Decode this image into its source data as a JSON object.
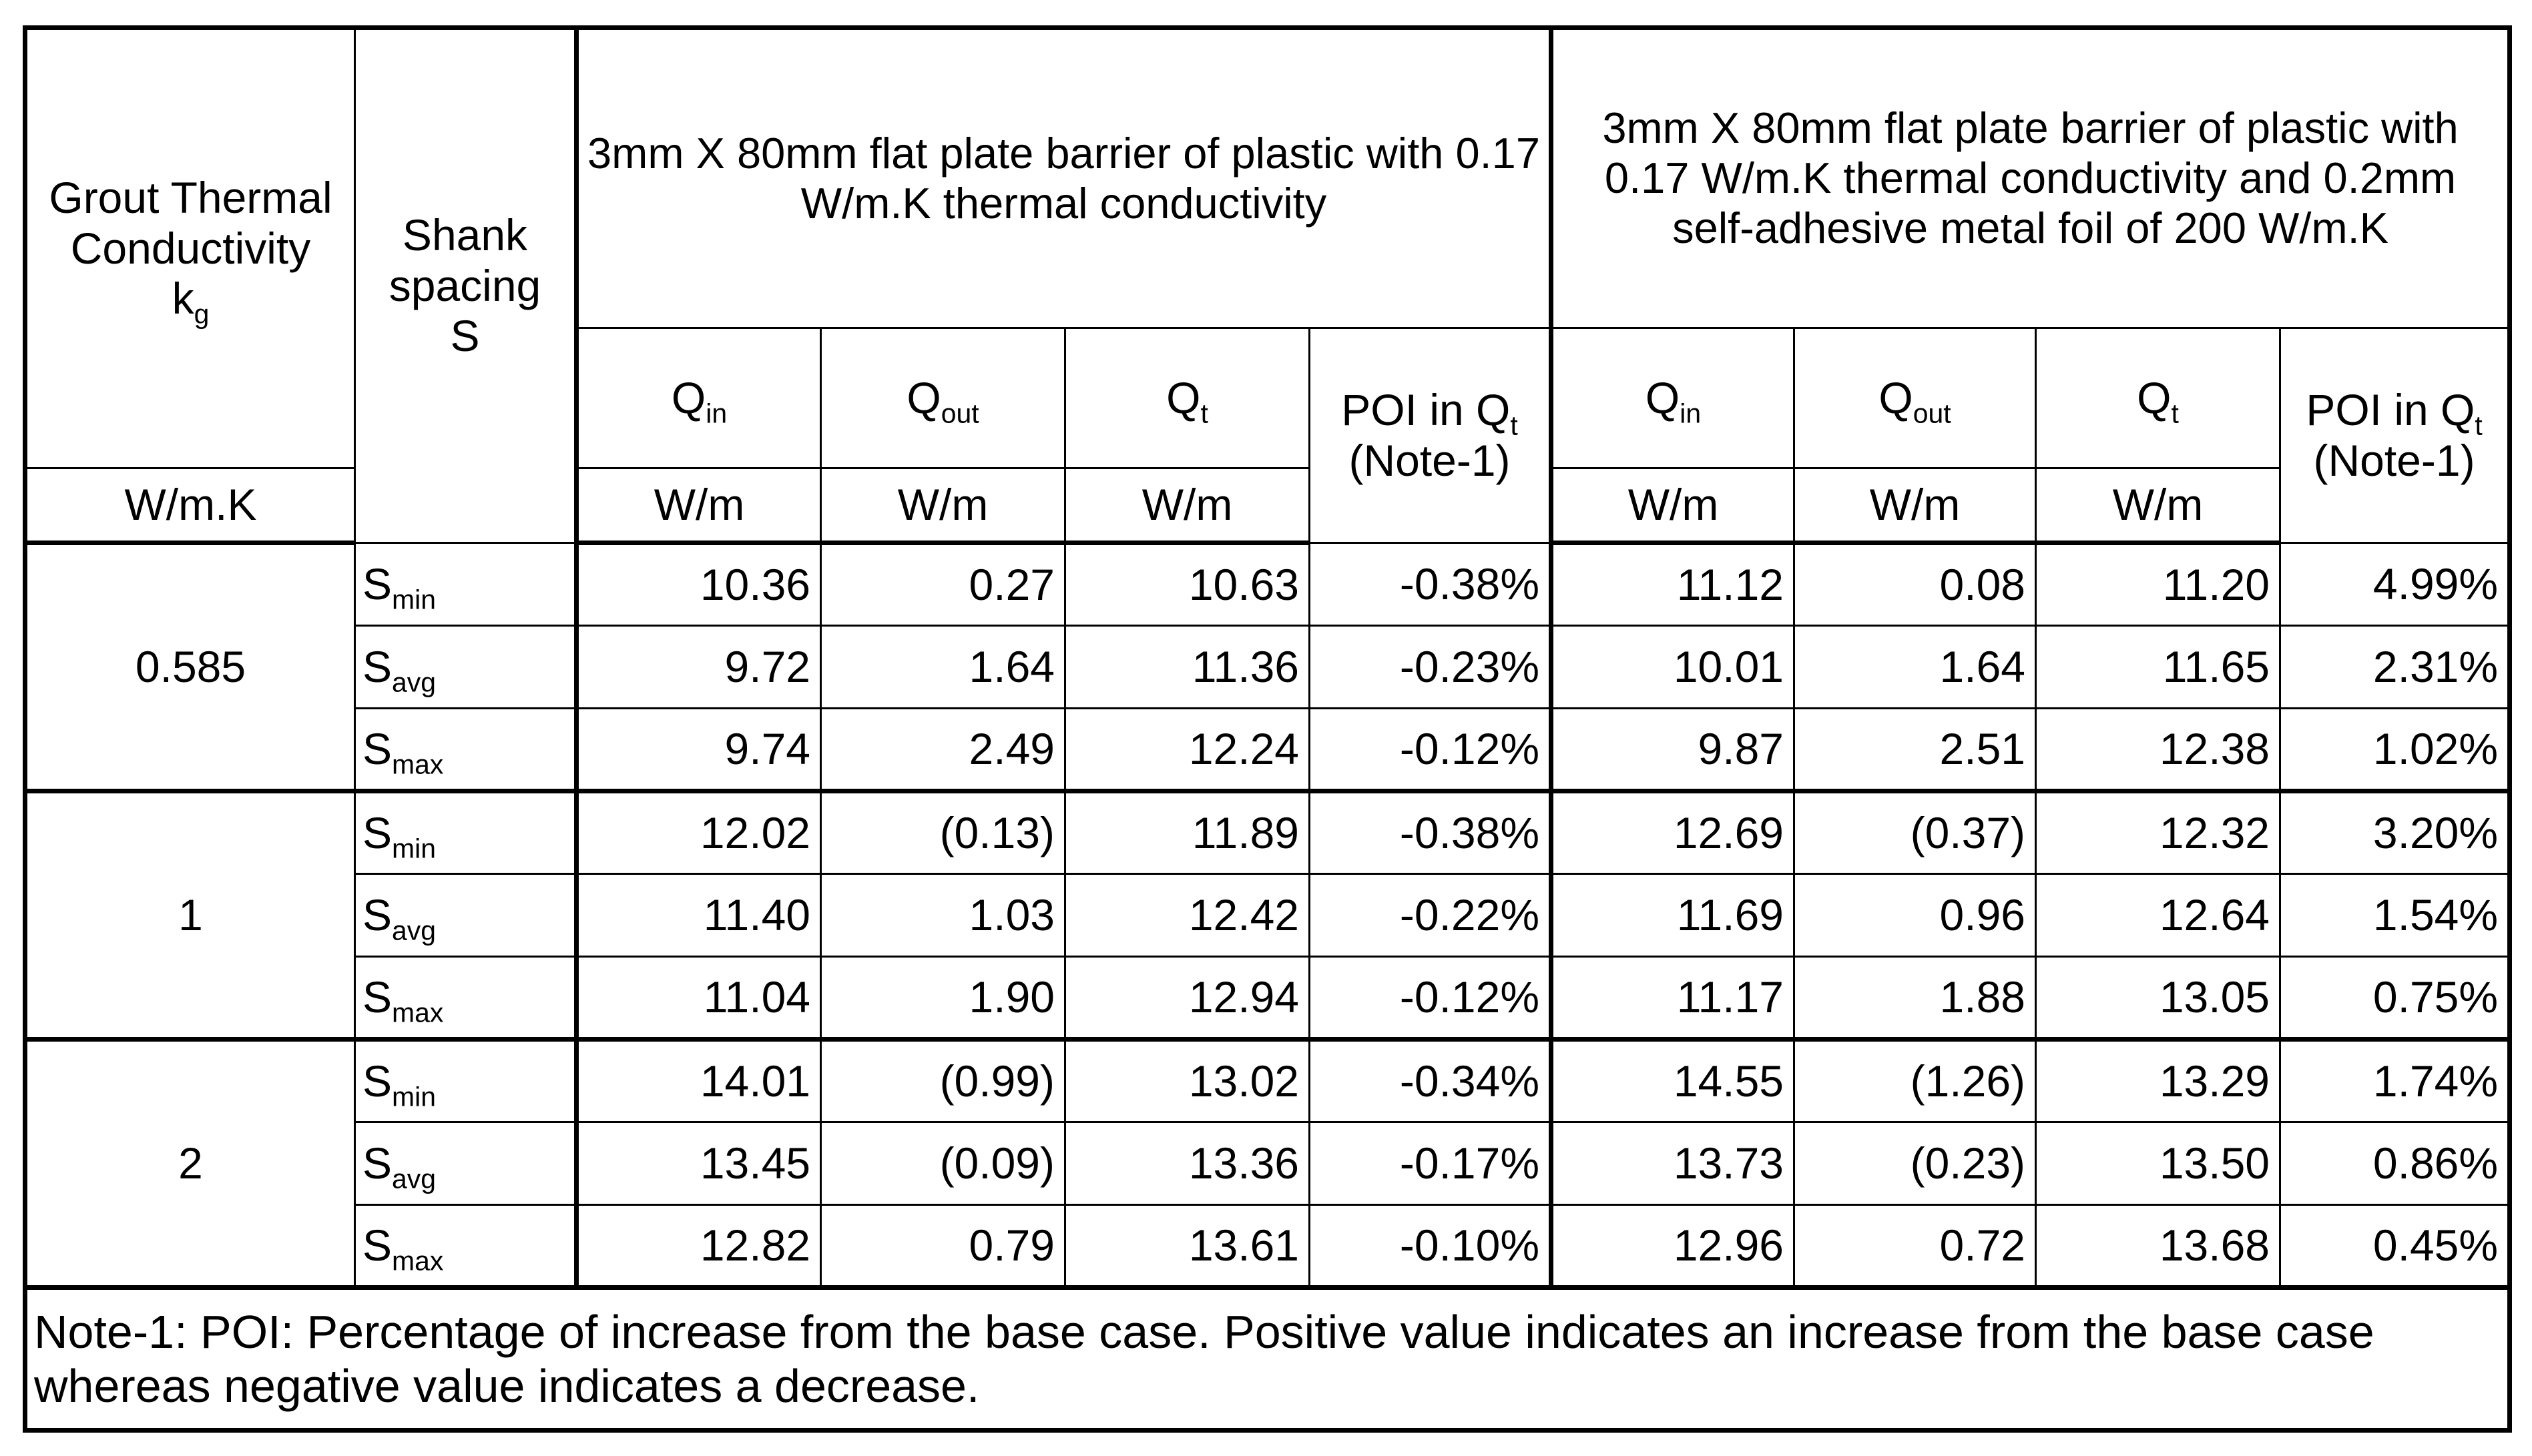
{
  "header": {
    "grout_label": "Grout Thermal Conductivity",
    "kg_base": "k",
    "kg_sub": "g",
    "kg_unit": "W/m.K",
    "shank_label": "Shank spacing",
    "shank_symbol": "S",
    "group1_title": "3mm X 80mm flat plate barrier of plastic with 0.17 W/m.K thermal conductivity",
    "group2_title": "3mm X 80mm flat plate barrier of plastic with 0.17 W/m.K thermal conductivity and 0.2mm self-adhesive metal foil of 200 W/m.K",
    "q_base": "Q",
    "sub_in": "in",
    "sub_out": "out",
    "sub_t": "t",
    "poi_label": "POI in Q",
    "poi_note": "(Note-1)",
    "unit_wm": "W/m"
  },
  "rows": [
    {
      "kg": "0.585",
      "s_sub": "min",
      "c": [
        "10.36",
        "0.27",
        "10.63",
        "-0.38%",
        "11.12",
        "0.08",
        "11.20",
        "4.99%"
      ]
    },
    {
      "kg": "0.585",
      "s_sub": "avg",
      "c": [
        "9.72",
        "1.64",
        "11.36",
        "-0.23%",
        "10.01",
        "1.64",
        "11.65",
        "2.31%"
      ]
    },
    {
      "kg": "0.585",
      "s_sub": "max",
      "c": [
        "9.74",
        "2.49",
        "12.24",
        "-0.12%",
        "9.87",
        "2.51",
        "12.38",
        "1.02%"
      ]
    },
    {
      "kg": "1",
      "s_sub": "min",
      "c": [
        "12.02",
        "(0.13)",
        "11.89",
        "-0.38%",
        "12.69",
        "(0.37)",
        "12.32",
        "3.20%"
      ]
    },
    {
      "kg": "1",
      "s_sub": "avg",
      "c": [
        "11.40",
        "1.03",
        "12.42",
        "-0.22%",
        "11.69",
        "0.96",
        "12.64",
        "1.54%"
      ]
    },
    {
      "kg": "1",
      "s_sub": "max",
      "c": [
        "11.04",
        "1.90",
        "12.94",
        "-0.12%",
        "11.17",
        "1.88",
        "13.05",
        "0.75%"
      ]
    },
    {
      "kg": "2",
      "s_sub": "min",
      "c": [
        "14.01",
        "(0.99)",
        "13.02",
        "-0.34%",
        "14.55",
        "(1.26)",
        "13.29",
        "1.74%"
      ]
    },
    {
      "kg": "2",
      "s_sub": "avg",
      "c": [
        "13.45",
        "(0.09)",
        "13.36",
        "-0.17%",
        "13.73",
        "(0.23)",
        "13.50",
        "0.86%"
      ]
    },
    {
      "kg": "2",
      "s_sub": "max",
      "c": [
        "12.82",
        "0.79",
        "13.61",
        "-0.10%",
        "12.96",
        "0.72",
        "13.68",
        "0.45%"
      ]
    }
  ],
  "note": "Note-1: POI: Percentage of increase from the base case. Positive value indicates an increase from the base case whereas negative value indicates a decrease."
}
